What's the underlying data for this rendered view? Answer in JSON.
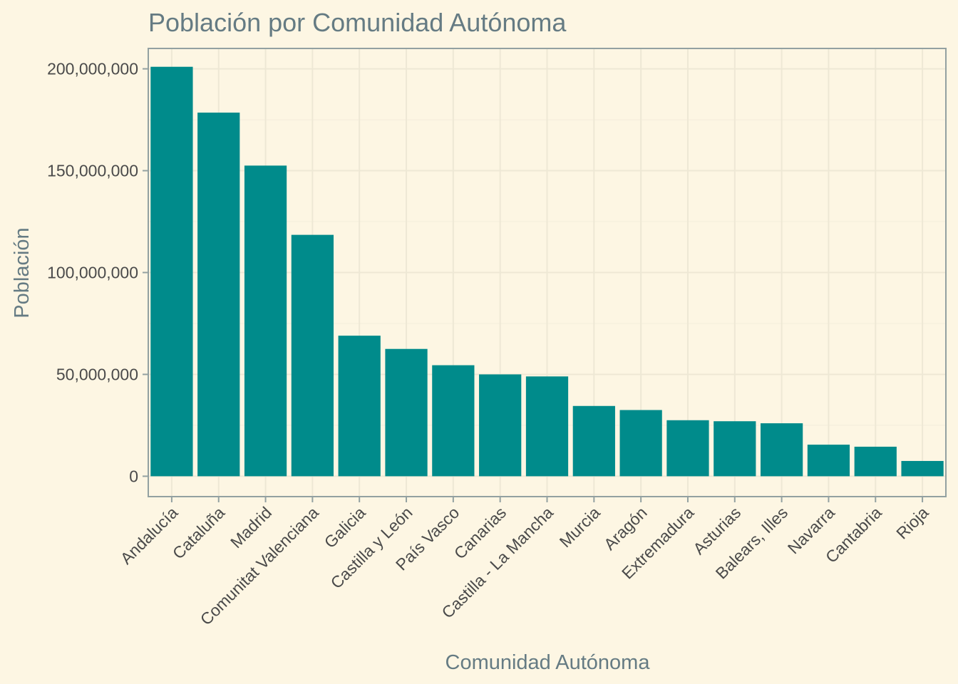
{
  "chart_data": {
    "type": "bar",
    "title": "Población por Comunidad Autónoma",
    "xlabel": "Comunidad Autónoma",
    "ylabel": "Población",
    "categories": [
      "Andalucía",
      "Cataluña",
      "Madrid",
      "Comunitat Valenciana",
      "Galicia",
      "Castilla y León",
      "País Vasco",
      "Canarias",
      "Castilla - La Mancha",
      "Murcia",
      "Aragón",
      "Extremadura",
      "Asturias",
      "Balears, Illes",
      "Navarra",
      "Cantabria",
      "Rioja"
    ],
    "values": [
      201000000,
      178500000,
      152500000,
      118500000,
      69000000,
      62500000,
      54500000,
      50000000,
      49000000,
      34500000,
      32500000,
      27500000,
      27000000,
      26000000,
      15500000,
      14500000,
      7500000
    ],
    "ylim": [
      -10000000,
      210000000
    ],
    "yticks": [
      0,
      50000000,
      100000000,
      150000000,
      200000000
    ],
    "ytick_labels": [
      "0",
      "50,000,000",
      "100,000,000",
      "150,000,000",
      "200,000,000"
    ],
    "grid": true,
    "legend": "none",
    "colors": {
      "bar": "#008b8b",
      "background": "#fdf6e3",
      "text": "#657b83"
    }
  }
}
